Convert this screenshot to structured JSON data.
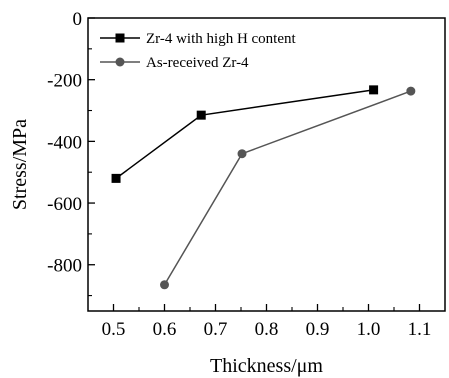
{
  "chart_data": {
    "type": "line",
    "xlabel": "Thickness/μm",
    "ylabel": "Stress/MPa",
    "xlim": [
      0.45,
      1.15
    ],
    "ylim": [
      -950,
      0
    ],
    "xticks": [
      0.5,
      0.6,
      0.7,
      0.8,
      0.9,
      1.0,
      1.1
    ],
    "xtick_labels": [
      "0.5",
      "0.6",
      "0.7",
      "0.8",
      "0.9",
      "1.0",
      "1.1"
    ],
    "yticks": [
      0,
      -200,
      -400,
      -600,
      -800
    ],
    "ytick_labels": [
      "0",
      "-200",
      "-400",
      "-600",
      "-800"
    ],
    "legend_position": "top-left",
    "grid": false,
    "series": [
      {
        "name": "Zr-4 with high H content",
        "marker": "square",
        "color": "#000000",
        "x": [
          0.505,
          0.672,
          1.01
        ],
        "y": [
          -520,
          -315,
          -233
        ]
      },
      {
        "name": "As-received Zr-4",
        "marker": "circle",
        "color": "#555555",
        "x": [
          0.6,
          0.752,
          1.083
        ],
        "y": [
          -865,
          -440,
          -237
        ]
      }
    ]
  }
}
